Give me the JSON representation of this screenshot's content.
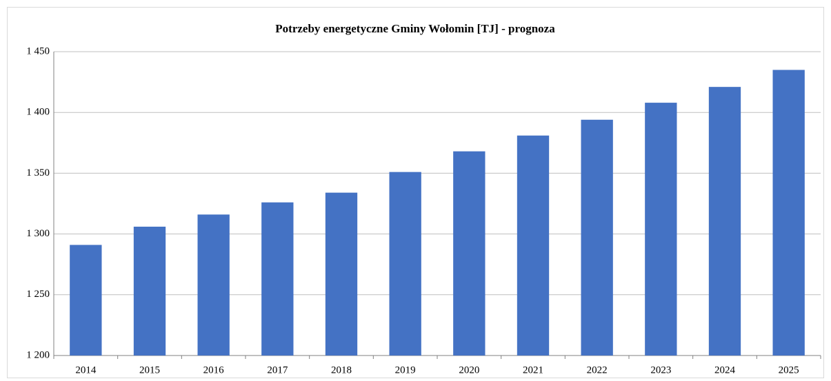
{
  "chart_data": {
    "type": "bar",
    "title": "Potrzeby energetyczne Gminy Wołomin [TJ] - prognoza",
    "categories": [
      "2014",
      "2015",
      "2016",
      "2017",
      "2018",
      "2019",
      "2020",
      "2021",
      "2022",
      "2023",
      "2024",
      "2025"
    ],
    "values": [
      1291,
      1306,
      1316,
      1326,
      1334,
      1351,
      1368,
      1381,
      1394,
      1408,
      1421,
      1435
    ],
    "color": "#4472c4",
    "ylim": [
      1200,
      1450
    ],
    "yticks": [
      {
        "value": 1200,
        "label": "1 200"
      },
      {
        "value": 1250,
        "label": "1 250"
      },
      {
        "value": 1300,
        "label": "1 300"
      },
      {
        "value": 1350,
        "label": "1 350"
      },
      {
        "value": 1400,
        "label": "1 400"
      },
      {
        "value": 1450,
        "label": "1 450"
      }
    ],
    "grid": true
  }
}
